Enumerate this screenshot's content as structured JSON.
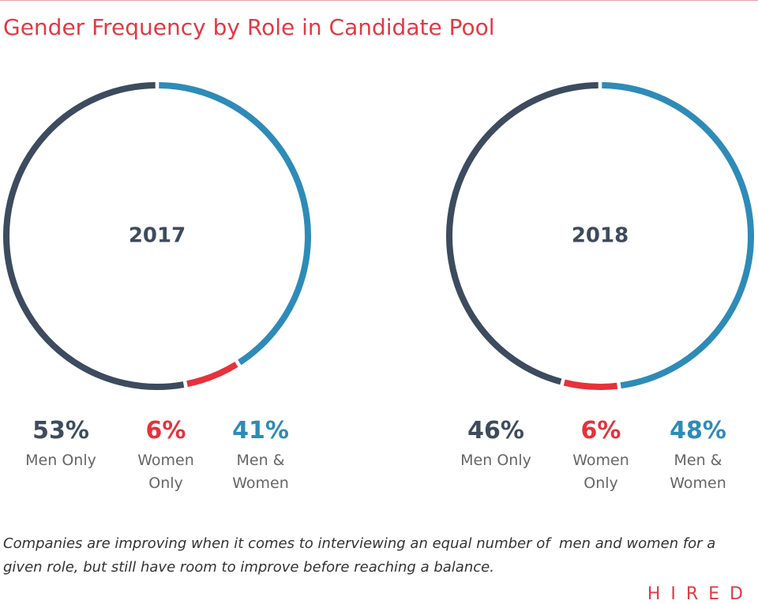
{
  "title": "Gender Frequency by Role in Candidate Pool",
  "chart_data": [
    {
      "type": "pie",
      "title": "2017",
      "categories": [
        "Men Only",
        "Women Only",
        "Men & Women"
      ],
      "values": [
        53,
        6,
        41
      ],
      "value_labels": [
        "53%",
        "6%",
        "41%"
      ],
      "colors": [
        "#3d4b5e",
        "#e5323c",
        "#2e8bb8"
      ]
    },
    {
      "type": "pie",
      "title": "2018",
      "categories": [
        "Men Only",
        "Women Only",
        "Men & Women"
      ],
      "values": [
        46,
        6,
        48
      ],
      "value_labels": [
        "46%",
        "6%",
        "48%"
      ],
      "colors": [
        "#3d4b5e",
        "#e5323c",
        "#2e8bb8"
      ]
    }
  ],
  "caption": "Companies are improving when it comes to interviewing an equal number of  men and women for a given role, but still have room to improve before reaching a balance.",
  "logo": "HIRED"
}
